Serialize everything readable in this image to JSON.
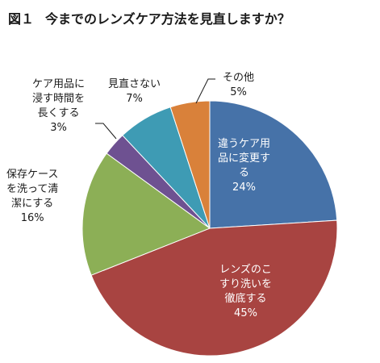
{
  "title": {
    "figure": "図１",
    "text": "今までのレンズケア方法を見直しますか？"
  },
  "chart_data": {
    "type": "pie",
    "start_angle_deg": 0,
    "direction": "clockwise",
    "slices": [
      {
        "label_lines": [
          "違うケア用",
          "品に変更す",
          "る"
        ],
        "value": 24,
        "pct_text": "24%",
        "color": "#4672a8"
      },
      {
        "label_lines": [
          "レンズのこ",
          "すり洗いを",
          "徹底する"
        ],
        "value": 45,
        "pct_text": "45%",
        "color": "#a84441"
      },
      {
        "label_lines": [
          "保存ケース",
          "を洗って清",
          "潔にする"
        ],
        "value": 16,
        "pct_text": "16%",
        "color": "#8caf56"
      },
      {
        "label_lines": [
          "ケア用品に",
          "浸す時間を",
          "長くする"
        ],
        "value": 3,
        "pct_text": "3%",
        "color": "#6e5191"
      },
      {
        "label_lines": [
          "見直さない"
        ],
        "value": 7,
        "pct_text": "7%",
        "color": "#3e9bb4"
      },
      {
        "label_lines": [
          "その他"
        ],
        "value": 5,
        "pct_text": "5%",
        "color": "#d9813a"
      }
    ]
  }
}
